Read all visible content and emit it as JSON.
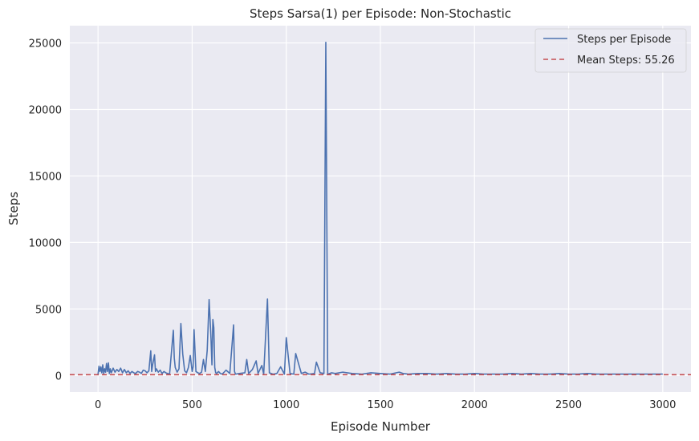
{
  "chart_data": {
    "type": "line",
    "title": "Steps Sarsa(1) per Episode: Non-Stochastic",
    "xlabel": "Episode Number",
    "ylabel": "Steps",
    "xlim": [
      -150,
      3150
    ],
    "ylim": [
      -1250,
      26300
    ],
    "xticks": [
      0,
      500,
      1000,
      1500,
      2000,
      2500,
      3000
    ],
    "yticks": [
      0,
      5000,
      10000,
      15000,
      20000,
      25000
    ],
    "grid": true,
    "legend_position": "top-right",
    "colors": {
      "series": "#4c72b0",
      "mean": "#c44e52",
      "background": "#eaeaf2",
      "grid": "#ffffff"
    },
    "series": [
      {
        "name": "Steps per Episode",
        "x": [
          0,
          5,
          10,
          15,
          20,
          25,
          30,
          35,
          40,
          45,
          50,
          55,
          60,
          65,
          70,
          75,
          80,
          90,
          100,
          110,
          120,
          130,
          140,
          150,
          160,
          170,
          180,
          190,
          200,
          210,
          220,
          230,
          240,
          250,
          260,
          270,
          280,
          285,
          290,
          300,
          305,
          310,
          320,
          330,
          340,
          350,
          360,
          380,
          400,
          405,
          410,
          420,
          430,
          440,
          450,
          460,
          470,
          480,
          490,
          500,
          505,
          510,
          520,
          530,
          540,
          550,
          560,
          570,
          580,
          590,
          600,
          605,
          610,
          615,
          620,
          625,
          630,
          640,
          650,
          660,
          680,
          700,
          720,
          725,
          730,
          750,
          780,
          790,
          800,
          820,
          840,
          850,
          870,
          880,
          900,
          910,
          930,
          950,
          970,
          990,
          1000,
          1020,
          1040,
          1050,
          1080,
          1100,
          1120,
          1150,
          1160,
          1180,
          1200,
          1210,
          1220,
          1240,
          1260,
          1300,
          1350,
          1400,
          1450,
          1500,
          1550,
          1600,
          1620,
          1650,
          1700,
          1750,
          1800,
          1850,
          1900,
          1950,
          2000,
          2050,
          2100,
          2150,
          2200,
          2250,
          2300,
          2350,
          2400,
          2450,
          2500,
          2550,
          2600,
          2650,
          2700,
          2750,
          2800,
          2850,
          2900,
          2950,
          3000
        ],
        "values": [
          100,
          700,
          300,
          650,
          200,
          800,
          150,
          500,
          250,
          900,
          300,
          950,
          150,
          500,
          200,
          350,
          550,
          250,
          450,
          300,
          550,
          200,
          450,
          200,
          350,
          150,
          300,
          200,
          150,
          300,
          250,
          150,
          400,
          350,
          200,
          350,
          1850,
          300,
          800,
          1550,
          300,
          500,
          250,
          400,
          150,
          300,
          200,
          100,
          3400,
          1300,
          600,
          250,
          500,
          3900,
          1600,
          350,
          200,
          600,
          1500,
          300,
          650,
          3450,
          300,
          200,
          150,
          250,
          1200,
          300,
          1900,
          5700,
          2800,
          800,
          4200,
          3600,
          600,
          200,
          150,
          300,
          150,
          100,
          400,
          150,
          3800,
          300,
          100,
          150,
          200,
          1200,
          150,
          450,
          1100,
          150,
          750,
          100,
          5750,
          200,
          100,
          150,
          650,
          100,
          2850,
          150,
          100,
          1650,
          150,
          250,
          100,
          150,
          1000,
          200,
          150,
          25050,
          100,
          200,
          150,
          250,
          150,
          100,
          200,
          150,
          100,
          250,
          150,
          100,
          150,
          150,
          100,
          150,
          100,
          100,
          150,
          100,
          100,
          100,
          150,
          100,
          150,
          100,
          100,
          150,
          100,
          100,
          150,
          100,
          100,
          100,
          100,
          100,
          100,
          100,
          100
        ]
      },
      {
        "name": "Mean Steps: 55.26",
        "value": 55.26
      }
    ]
  }
}
